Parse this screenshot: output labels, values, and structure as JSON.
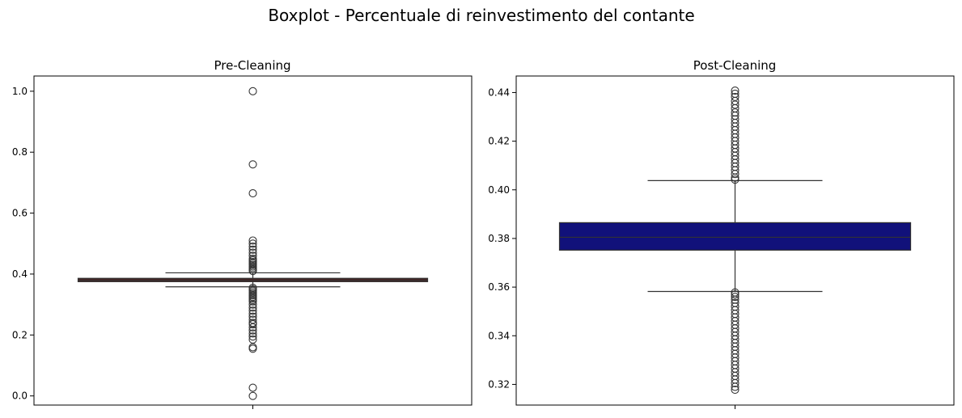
{
  "title": "Boxplot - Percentuale di reinvestimento del contante",
  "chart_data": [
    {
      "type": "box",
      "title": "Pre-Cleaning",
      "xlabel": "",
      "ylabel": "",
      "ylim": [
        -0.03,
        1.05
      ],
      "yticks": [
        0.0,
        0.2,
        0.4,
        0.6,
        0.8,
        1.0
      ],
      "ytick_labels": [
        "0.0",
        "0.2",
        "0.4",
        "0.6",
        "0.8",
        "1.0"
      ],
      "box_color": "#4a1f1f",
      "median": 0.38,
      "q1": 0.375,
      "q3": 0.386,
      "whisker_low": 0.358,
      "whisker_high": 0.404,
      "outliers": [
        1.0,
        0.76,
        0.665,
        0.51,
        0.5,
        0.49,
        0.48,
        0.47,
        0.46,
        0.45,
        0.445,
        0.44,
        0.435,
        0.43,
        0.425,
        0.42,
        0.415,
        0.41,
        0.355,
        0.35,
        0.345,
        0.34,
        0.335,
        0.33,
        0.325,
        0.32,
        0.315,
        0.31,
        0.3,
        0.29,
        0.28,
        0.27,
        0.26,
        0.25,
        0.24,
        0.235,
        0.225,
        0.215,
        0.205,
        0.195,
        0.185,
        0.16,
        0.155,
        0.027,
        0.0
      ]
    },
    {
      "type": "box",
      "title": "Post-Cleaning",
      "xlabel": "",
      "ylabel": "",
      "ylim": [
        0.3115,
        0.4468
      ],
      "yticks": [
        0.32,
        0.34,
        0.36,
        0.38,
        0.4,
        0.42,
        0.44
      ],
      "ytick_labels": [
        "0.32",
        "0.34",
        "0.36",
        "0.38",
        "0.40",
        "0.42",
        "0.44"
      ],
      "box_color": "#11117a",
      "median": 0.3805,
      "q1": 0.3752,
      "q3": 0.3865,
      "whisker_low": 0.3582,
      "whisker_high": 0.4038,
      "outliers": [
        0.4408,
        0.4395,
        0.4382,
        0.4365,
        0.435,
        0.4335,
        0.4318,
        0.4305,
        0.429,
        0.4275,
        0.426,
        0.4245,
        0.423,
        0.4215,
        0.42,
        0.4185,
        0.417,
        0.4155,
        0.414,
        0.4125,
        0.411,
        0.4095,
        0.408,
        0.4065,
        0.405,
        0.4042,
        0.3578,
        0.357,
        0.356,
        0.3548,
        0.3535,
        0.352,
        0.3505,
        0.349,
        0.3475,
        0.346,
        0.3445,
        0.343,
        0.3415,
        0.34,
        0.3385,
        0.337,
        0.3355,
        0.334,
        0.3325,
        0.331,
        0.3295,
        0.328,
        0.3265,
        0.325,
        0.3235,
        0.322,
        0.3205,
        0.319,
        0.3178
      ]
    }
  ]
}
